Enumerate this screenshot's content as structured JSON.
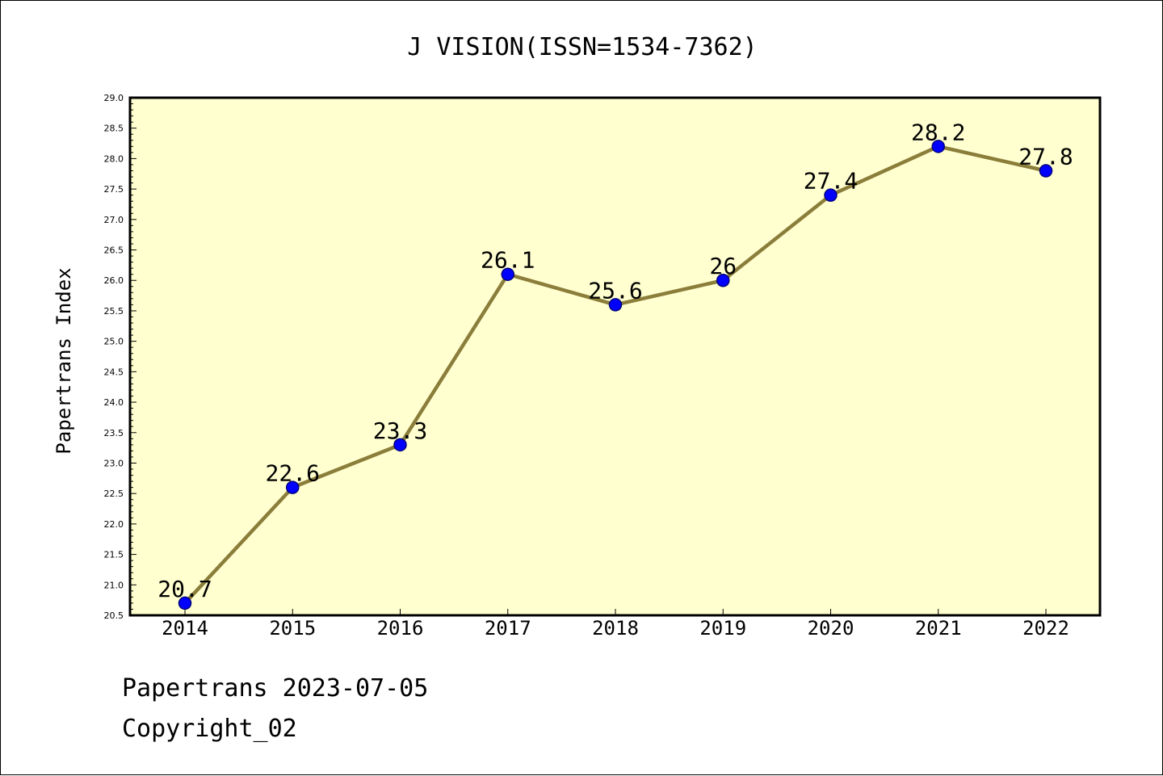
{
  "chart_data": {
    "type": "line",
    "title": "J VISION(ISSN=1534-7362)",
    "xlabel": "",
    "ylabel": "Papertrans Index",
    "categories": [
      "2014",
      "2015",
      "2016",
      "2017",
      "2018",
      "2019",
      "2020",
      "2021",
      "2022"
    ],
    "series": [
      {
        "values": [
          20.7,
          22.6,
          23.3,
          26.1,
          25.6,
          26.0,
          27.4,
          28.2,
          27.8
        ],
        "labels": [
          "20.7",
          "22.6",
          "23.3",
          "26.1",
          "25.6",
          "26",
          "27.4",
          "28.2",
          "27.8"
        ]
      }
    ],
    "ylim": [
      20.5,
      29.0
    ],
    "yticks": [
      "20.5",
      "21.0",
      "21.5",
      "22.0",
      "22.5",
      "23.0",
      "23.5",
      "24.0",
      "24.5",
      "25.0",
      "25.5",
      "26.0",
      "26.5",
      "27.0",
      "27.5",
      "28.0",
      "28.5",
      "29.0"
    ],
    "grid": false,
    "legend": "none",
    "colors": {
      "plot_background": "#ffffd0",
      "line": "#8b7d3a",
      "marker_fill": "#0000ff",
      "marker_edge": "#000080",
      "axis": "#000000"
    }
  },
  "footer": {
    "line1": "Papertrans 2023-07-05",
    "line2": "Copyright_02"
  }
}
